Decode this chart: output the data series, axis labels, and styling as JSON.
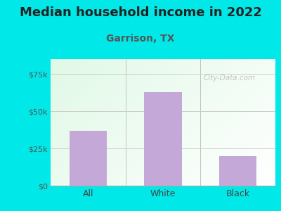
{
  "title": "Median household income in 2022",
  "subtitle": "Garrison, TX",
  "categories": [
    "All",
    "White",
    "Black"
  ],
  "values": [
    37000,
    63000,
    20000
  ],
  "bar_color": "#c4a8d8",
  "title_color": "#222222",
  "subtitle_color": "#555555",
  "yticks": [
    0,
    25000,
    50000,
    75000
  ],
  "ytick_labels": [
    "$0",
    "$25k",
    "$50k",
    "$75k"
  ],
  "ylim": [
    0,
    85000
  ],
  "outer_bg": "#00e8e8",
  "watermark": "City-Data.com",
  "title_fontsize": 13,
  "subtitle_fontsize": 10,
  "grid_color": "#cccccc",
  "plot_bg_left_top": "#d8f5e0",
  "plot_bg_right_bottom": "#f8fffc"
}
